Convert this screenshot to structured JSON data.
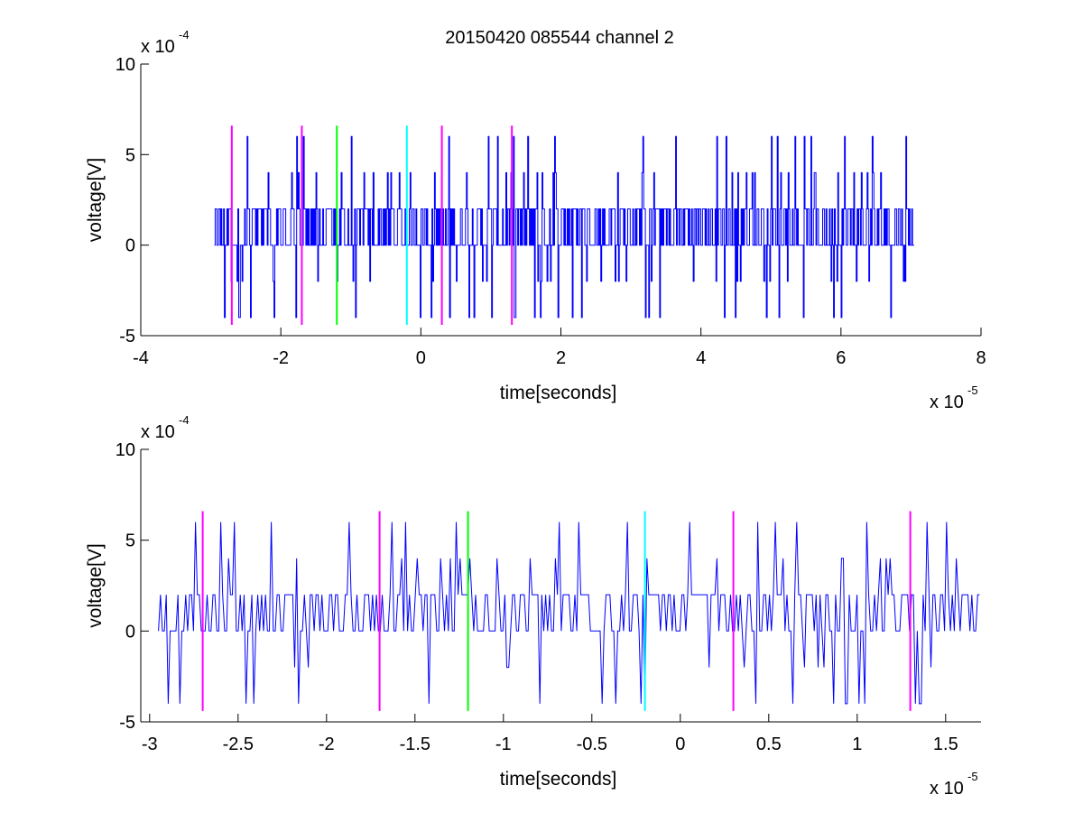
{
  "figure": {
    "title": "20150420 085544 channel 2"
  },
  "chart_data": [
    {
      "type": "line",
      "xlabel": "time[seconds]",
      "ylabel": "voltage[V]",
      "x_exponent_label": "x 10",
      "x_exponent": "-5",
      "y_exponent_label": "x 10",
      "y_exponent": "-4",
      "xlim": [
        -4,
        8
      ],
      "ylim": [
        -5,
        10
      ],
      "xticks": [
        -4,
        -2,
        0,
        2,
        4,
        6,
        8
      ],
      "xtick_labels": [
        "-4",
        "-2",
        "0",
        "2",
        "4",
        "6",
        "8"
      ],
      "yticks": [
        -5,
        0,
        5,
        10
      ],
      "ytick_labels": [
        "-5",
        "0",
        "5",
        "10"
      ],
      "grid": false,
      "series": [
        {
          "color": "#0000ff",
          "x_start": -2.95,
          "x_end": 7.05,
          "levels": [
            -4,
            -2,
            0,
            2,
            4,
            6
          ],
          "dominant_levels": [
            0,
            2
          ]
        }
      ],
      "markers": [
        {
          "x": -2.7,
          "color": "#ff00ff",
          "ymin": -4.4,
          "ymax": 6.6
        },
        {
          "x": -1.7,
          "color": "#ff00ff",
          "ymin": -4.4,
          "ymax": 6.6
        },
        {
          "x": -1.2,
          "color": "#00ff00",
          "ymin": -4.4,
          "ymax": 6.6
        },
        {
          "x": -0.2,
          "color": "#00ffff",
          "ymin": -4.4,
          "ymax": 6.6
        },
        {
          "x": 0.3,
          "color": "#ff00ff",
          "ymin": -4.4,
          "ymax": 6.6
        },
        {
          "x": 1.3,
          "color": "#ff00ff",
          "ymin": -4.4,
          "ymax": 6.6
        }
      ]
    },
    {
      "type": "line",
      "xlabel": "time[seconds]",
      "ylabel": "voltage[V]",
      "x_exponent_label": "x 10",
      "x_exponent": "-5",
      "y_exponent_label": "x 10",
      "y_exponent": "-4",
      "xlim": [
        -3.05,
        1.7
      ],
      "ylim": [
        -5,
        10
      ],
      "xticks": [
        -3,
        -2.5,
        -2,
        -1.5,
        -1,
        -0.5,
        0,
        0.5,
        1,
        1.5
      ],
      "xtick_labels": [
        "-3",
        "-2.5",
        "-2",
        "-1.5",
        "-1",
        "-0.5",
        "0",
        "0.5",
        "1",
        "1.5"
      ],
      "yticks": [
        -5,
        0,
        5,
        10
      ],
      "ytick_labels": [
        "-5",
        "0",
        "5",
        "10"
      ],
      "grid": false,
      "series": [
        {
          "color": "#0000ff",
          "x_start": -2.95,
          "x_end": 1.7,
          "levels": [
            -4,
            -2,
            0,
            2,
            4,
            6
          ],
          "dominant_levels": [
            0,
            2
          ]
        }
      ],
      "markers": [
        {
          "x": -2.7,
          "color": "#ff00ff",
          "ymin": -4.4,
          "ymax": 6.6
        },
        {
          "x": -1.7,
          "color": "#ff00ff",
          "ymin": -4.4,
          "ymax": 6.6
        },
        {
          "x": -1.2,
          "color": "#00ff00",
          "ymin": -4.4,
          "ymax": 6.6
        },
        {
          "x": -0.2,
          "color": "#00ffff",
          "ymin": -4.4,
          "ymax": 6.6
        },
        {
          "x": 0.3,
          "color": "#ff00ff",
          "ymin": -4.4,
          "ymax": 6.6
        },
        {
          "x": 1.3,
          "color": "#ff00ff",
          "ymin": -4.4,
          "ymax": 6.6
        }
      ]
    }
  ]
}
